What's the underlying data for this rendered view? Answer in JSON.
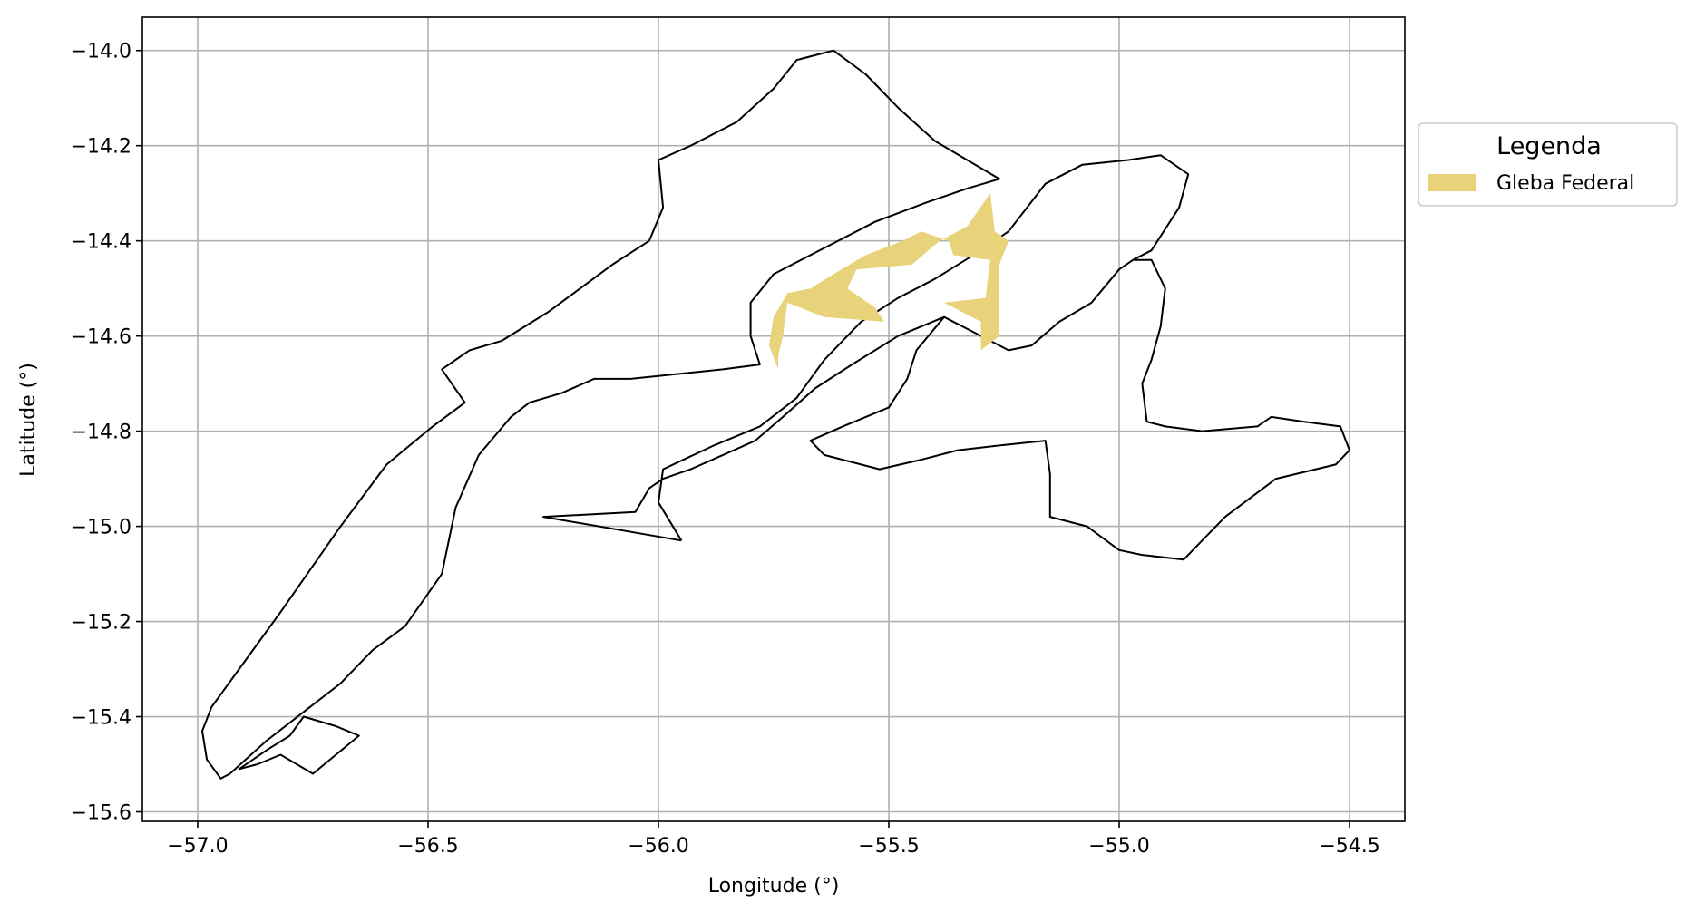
{
  "chart_data": {
    "type": "map",
    "xlabel": "Longitude (°)",
    "ylabel": "Latitude (°)",
    "xlim": [
      -57.12,
      -54.38
    ],
    "ylim": [
      -15.62,
      -13.93
    ],
    "grid": true,
    "x_ticks": [
      -57.0,
      -56.5,
      -56.0,
      -55.5,
      -55.0,
      -54.5
    ],
    "y_ticks": [
      -14.0,
      -14.2,
      -14.4,
      -14.6,
      -14.8,
      -15.0,
      -15.2,
      -15.4,
      -15.6
    ],
    "x_tick_labels": [
      "−57.0",
      "−56.5",
      "−56.0",
      "−55.5",
      "−55.0",
      "−54.5"
    ],
    "y_tick_labels": [
      "−14.0",
      "−14.2",
      "−14.4",
      "−14.6",
      "−14.8",
      "−15.0",
      "−15.2",
      "−15.4",
      "−15.6"
    ],
    "legend": {
      "title": "Legenda",
      "placement": "outside-right-top",
      "entries": [
        {
          "label": "Gleba Federal",
          "color": "#E8D27A"
        }
      ]
    },
    "layers": [
      {
        "name": "boundaries",
        "style": {
          "stroke": "#000000",
          "fill": "none"
        },
        "polygons": [
          [
            [
              -56.97,
              -15.38
            ],
            [
              -56.82,
              -15.18
            ],
            [
              -56.69,
              -15.0
            ],
            [
              -56.59,
              -14.87
            ],
            [
              -56.49,
              -14.79
            ],
            [
              -56.42,
              -14.74
            ],
            [
              -56.47,
              -14.67
            ],
            [
              -56.41,
              -14.63
            ],
            [
              -56.34,
              -14.61
            ],
            [
              -56.24,
              -14.55
            ],
            [
              -56.1,
              -14.45
            ],
            [
              -56.02,
              -14.4
            ],
            [
              -55.99,
              -14.33
            ],
            [
              -56.0,
              -14.23
            ],
            [
              -55.93,
              -14.2
            ],
            [
              -55.83,
              -14.15
            ],
            [
              -55.75,
              -14.08
            ],
            [
              -55.7,
              -14.02
            ],
            [
              -55.62,
              -14.0
            ],
            [
              -55.55,
              -14.05
            ],
            [
              -55.48,
              -14.12
            ],
            [
              -55.4,
              -14.19
            ],
            [
              -55.33,
              -14.23
            ],
            [
              -55.26,
              -14.27
            ],
            [
              -55.33,
              -14.29
            ],
            [
              -55.42,
              -14.32
            ],
            [
              -55.53,
              -14.36
            ],
            [
              -55.63,
              -14.41
            ],
            [
              -55.75,
              -14.47
            ],
            [
              -55.8,
              -14.53
            ],
            [
              -55.8,
              -14.6
            ],
            [
              -55.78,
              -14.66
            ],
            [
              -55.86,
              -14.67
            ],
            [
              -55.96,
              -14.68
            ],
            [
              -56.06,
              -14.69
            ],
            [
              -56.14,
              -14.69
            ],
            [
              -56.21,
              -14.72
            ],
            [
              -56.28,
              -14.74
            ],
            [
              -56.32,
              -14.77
            ],
            [
              -56.39,
              -14.85
            ],
            [
              -56.44,
              -14.96
            ],
            [
              -56.47,
              -15.1
            ],
            [
              -56.55,
              -15.21
            ],
            [
              -56.62,
              -15.26
            ],
            [
              -56.69,
              -15.33
            ],
            [
              -56.77,
              -15.39
            ],
            [
              -56.85,
              -15.45
            ],
            [
              -56.93,
              -15.52
            ],
            [
              -56.95,
              -15.53
            ],
            [
              -56.98,
              -15.49
            ],
            [
              -56.99,
              -15.43
            ],
            [
              -56.97,
              -15.38
            ]
          ],
          [
            [
              -56.8,
              -15.44
            ],
            [
              -56.85,
              -15.47
            ],
            [
              -56.91,
              -15.51
            ],
            [
              -56.87,
              -15.5
            ],
            [
              -56.82,
              -15.48
            ],
            [
              -56.75,
              -15.52
            ],
            [
              -56.7,
              -15.48
            ],
            [
              -56.65,
              -15.44
            ],
            [
              -56.7,
              -15.42
            ],
            [
              -56.77,
              -15.4
            ],
            [
              -56.8,
              -15.44
            ]
          ],
          [
            [
              -55.95,
              -15.03
            ],
            [
              -56.0,
              -14.95
            ],
            [
              -55.99,
              -14.88
            ],
            [
              -55.88,
              -14.83
            ],
            [
              -55.78,
              -14.79
            ],
            [
              -55.7,
              -14.73
            ],
            [
              -55.64,
              -14.65
            ],
            [
              -55.56,
              -14.57
            ],
            [
              -55.48,
              -14.52
            ],
            [
              -55.4,
              -14.48
            ],
            [
              -55.3,
              -14.42
            ],
            [
              -55.24,
              -14.38
            ],
            [
              -55.16,
              -14.28
            ],
            [
              -55.08,
              -14.24
            ],
            [
              -54.98,
              -14.23
            ],
            [
              -54.91,
              -14.22
            ],
            [
              -54.85,
              -14.26
            ],
            [
              -54.87,
              -14.33
            ],
            [
              -54.93,
              -14.42
            ],
            [
              -54.97,
              -14.44
            ],
            [
              -55.0,
              -14.46
            ],
            [
              -55.06,
              -14.53
            ],
            [
              -55.13,
              -14.57
            ],
            [
              -55.19,
              -14.62
            ],
            [
              -55.24,
              -14.63
            ],
            [
              -55.32,
              -14.59
            ],
            [
              -55.38,
              -14.56
            ],
            [
              -55.48,
              -14.6
            ],
            [
              -55.58,
              -14.66
            ],
            [
              -55.66,
              -14.71
            ],
            [
              -55.73,
              -14.77
            ],
            [
              -55.79,
              -14.82
            ],
            [
              -55.86,
              -14.85
            ],
            [
              -55.93,
              -14.88
            ],
            [
              -55.99,
              -14.9
            ],
            [
              -56.02,
              -14.92
            ],
            [
              -56.05,
              -14.97
            ],
            [
              -56.25,
              -14.98
            ],
            [
              -55.95,
              -15.03
            ]
          ],
          [
            [
              -55.38,
              -14.56
            ],
            [
              -55.44,
              -14.63
            ],
            [
              -55.46,
              -14.69
            ],
            [
              -55.5,
              -14.75
            ],
            [
              -55.6,
              -14.79
            ],
            [
              -55.67,
              -14.82
            ],
            [
              -55.64,
              -14.85
            ],
            [
              -55.52,
              -14.88
            ],
            [
              -55.43,
              -14.86
            ],
            [
              -55.35,
              -14.84
            ],
            [
              -55.26,
              -14.83
            ],
            [
              -55.16,
              -14.82
            ],
            [
              -55.15,
              -14.89
            ],
            [
              -55.15,
              -14.98
            ],
            [
              -55.07,
              -15.0
            ],
            [
              -55.0,
              -15.05
            ],
            [
              -54.95,
              -15.06
            ],
            [
              -54.86,
              -15.07
            ],
            [
              -54.77,
              -14.98
            ],
            [
              -54.66,
              -14.9
            ],
            [
              -54.53,
              -14.87
            ],
            [
              -54.5,
              -14.84
            ],
            [
              -54.52,
              -14.79
            ],
            [
              -54.6,
              -14.78
            ],
            [
              -54.67,
              -14.77
            ],
            [
              -54.7,
              -14.79
            ],
            [
              -54.82,
              -14.8
            ],
            [
              -54.9,
              -14.79
            ],
            [
              -54.94,
              -14.78
            ],
            [
              -54.95,
              -14.7
            ],
            [
              -54.93,
              -14.65
            ],
            [
              -54.91,
              -14.58
            ],
            [
              -54.9,
              -14.5
            ],
            [
              -54.93,
              -14.44
            ],
            [
              -54.97,
              -14.44
            ]
          ]
        ]
      },
      {
        "name": "Gleba Federal",
        "style": {
          "fill": "#E8D27A",
          "stroke": "none"
        },
        "polygons": [
          [
            [
              -55.28,
              -14.3
            ],
            [
              -55.27,
              -14.38
            ],
            [
              -55.24,
              -14.4
            ],
            [
              -55.26,
              -14.45
            ],
            [
              -55.26,
              -14.6
            ],
            [
              -55.3,
              -14.63
            ],
            [
              -55.3,
              -14.57
            ],
            [
              -55.38,
              -14.53
            ],
            [
              -55.29,
              -14.52
            ],
            [
              -55.28,
              -14.44
            ],
            [
              -55.36,
              -14.43
            ],
            [
              -55.37,
              -14.4
            ],
            [
              -55.43,
              -14.38
            ],
            [
              -55.47,
              -14.4
            ],
            [
              -55.55,
              -14.43
            ],
            [
              -55.62,
              -14.47
            ],
            [
              -55.67,
              -14.5
            ],
            [
              -55.72,
              -14.51
            ],
            [
              -55.75,
              -14.56
            ],
            [
              -55.76,
              -14.62
            ],
            [
              -55.74,
              -14.67
            ],
            [
              -55.74,
              -14.69
            ],
            [
              -55.74,
              -14.64
            ],
            [
              -55.73,
              -14.6
            ],
            [
              -55.72,
              -14.53
            ],
            [
              -55.64,
              -14.56
            ],
            [
              -55.51,
              -14.57
            ],
            [
              -55.53,
              -14.54
            ],
            [
              -55.59,
              -14.5
            ],
            [
              -55.57,
              -14.46
            ],
            [
              -55.45,
              -14.45
            ],
            [
              -55.39,
              -14.4
            ],
            [
              -55.33,
              -14.37
            ],
            [
              -55.28,
              -14.3
            ]
          ]
        ]
      }
    ]
  }
}
